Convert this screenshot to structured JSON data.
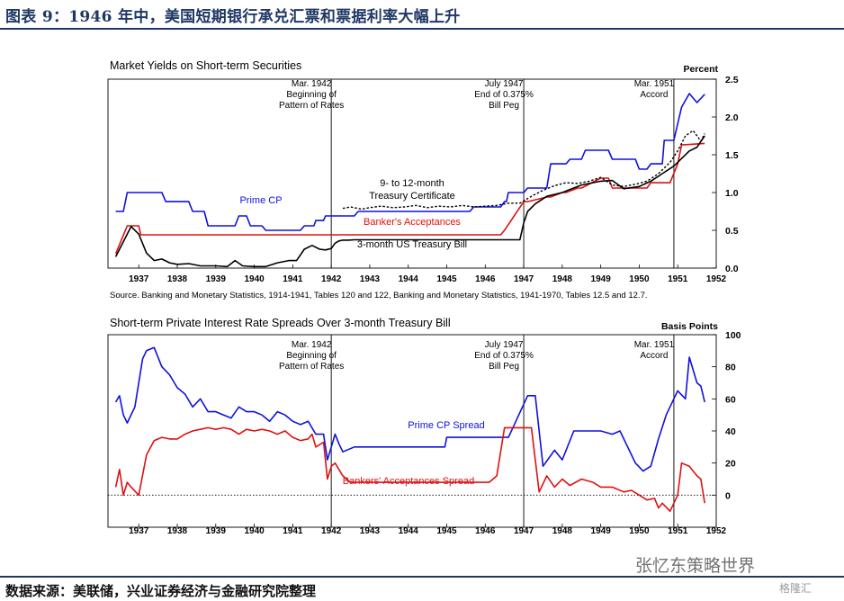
{
  "figure_title": "图表 9：1946 年中，美国短期银行承兑汇票和票据利率大幅上升",
  "source_footer": "数据来源：美联储，兴业证券经济与金融研究院整理",
  "watermark": "张忆东策略世界",
  "watermark_logo": "格隆汇",
  "chart_data": [
    {
      "type": "line",
      "title": "Market Yields on Short-term Securities",
      "ylabel": "Percent",
      "ylim": [
        0.0,
        2.5
      ],
      "yticks": [
        "2.5",
        "2.0",
        "1.5",
        "1.0",
        "0.5",
        "0.0"
      ],
      "ytick_values": [
        2.5,
        2.0,
        1.5,
        1.0,
        0.5,
        0.0
      ],
      "xlim": [
        1936.2,
        1952.0
      ],
      "xtick_labels": [
        "1937",
        "1938",
        "1939",
        "1940",
        "1941",
        "1942",
        "1943",
        "1944",
        "1945",
        "1946",
        "1947",
        "1948",
        "1949",
        "1950",
        "1951",
        "1952"
      ],
      "xtick_values": [
        1937,
        1938,
        1939,
        1940,
        1941,
        1942,
        1943,
        1944,
        1945,
        1946,
        1947,
        1948,
        1949,
        1950,
        1951,
        1952
      ],
      "source_note": "Source.  Banking and Monetary Statistics, 1914-1941, Tables 120 and 122, Banking and Monetary Statistics, 1941-1970, Tables 12.5 and 12.7.",
      "events": [
        {
          "x": 1942.0,
          "lines": [
            "Mar. 1942",
            "Beginning of",
            "Pattern of Rates"
          ]
        },
        {
          "x": 1947.0,
          "lines": [
            "July 1947",
            "End of 0.375%",
            "Bill Peg"
          ]
        },
        {
          "x": 1950.9,
          "lines": [
            "Mar. 1951",
            "Accord"
          ]
        }
      ],
      "series": [
        {
          "name": "Prime CP",
          "label": "Prime CP",
          "color": "#1010e0",
          "dashed": false,
          "x": [
            1936.4,
            1936.6,
            1936.7,
            1937.6,
            1937.7,
            1938.3,
            1938.4,
            1938.7,
            1938.8,
            1939.5,
            1939.6,
            1939.8,
            1939.9,
            1940.2,
            1940.3,
            1941.2,
            1941.3,
            1941.55,
            1941.6,
            1941.8,
            1941.85,
            1942.1,
            1942.2,
            1942.6,
            1942.7,
            1945.6,
            1945.7,
            1946.4,
            1946.5,
            1946.55,
            1946.6,
            1947.0,
            1947.1,
            1947.6,
            1947.7,
            1948.1,
            1948.2,
            1948.5,
            1948.6,
            1949.2,
            1949.3,
            1949.9,
            1950.0,
            1950.2,
            1950.3,
            1950.6,
            1950.65,
            1950.9,
            1951.1,
            1951.3,
            1951.5,
            1951.7
          ],
          "y": [
            0.75,
            0.75,
            1.0,
            1.0,
            0.88,
            0.88,
            0.75,
            0.75,
            0.56,
            0.56,
            0.69,
            0.69,
            0.56,
            0.56,
            0.5,
            0.5,
            0.56,
            0.56,
            0.63,
            0.63,
            0.69,
            0.69,
            0.69,
            0.69,
            0.75,
            0.75,
            0.81,
            0.81,
            0.88,
            0.88,
            1.0,
            1.0,
            1.06,
            1.06,
            1.38,
            1.38,
            1.44,
            1.44,
            1.56,
            1.56,
            1.44,
            1.44,
            1.31,
            1.31,
            1.38,
            1.38,
            1.69,
            1.69,
            2.13,
            2.31,
            2.19,
            2.3
          ]
        },
        {
          "name": "Banker's Acceptances",
          "label": "Banker's Acceptances",
          "color": "#e01010",
          "dashed": false,
          "x": [
            1936.4,
            1936.7,
            1937.0,
            1937.05,
            1942.1,
            1942.2,
            1946.4,
            1946.5,
            1947.0,
            1947.1,
            1947.6,
            1947.7,
            1948.0,
            1948.1,
            1948.4,
            1948.5,
            1949.0,
            1949.2,
            1949.3,
            1950.2,
            1950.3,
            1950.8,
            1951.0,
            1951.1,
            1951.7
          ],
          "y": [
            0.19,
            0.56,
            0.56,
            0.44,
            0.44,
            0.44,
            0.44,
            0.5,
            0.88,
            0.88,
            0.94,
            0.94,
            1.0,
            1.0,
            1.06,
            1.06,
            1.19,
            1.19,
            1.06,
            1.06,
            1.13,
            1.13,
            1.38,
            1.63,
            1.65
          ]
        },
        {
          "name": "9- to 12-month Treasury Certificate",
          "label": "9- to 12-month Treasury Certificate",
          "color": "#000000",
          "dashed": true,
          "x": [
            1942.3,
            1942.5,
            1942.8,
            1943.0,
            1943.3,
            1943.6,
            1943.9,
            1944.2,
            1944.5,
            1944.8,
            1945.1,
            1945.4,
            1945.7,
            1946.0,
            1946.3,
            1946.6,
            1946.9,
            1947.2,
            1947.5,
            1947.8,
            1948.1,
            1948.4,
            1948.7,
            1949.0,
            1949.3,
            1949.6,
            1949.9,
            1950.2,
            1950.5,
            1950.8,
            1951.0,
            1951.2,
            1951.4,
            1951.6,
            1951.7
          ],
          "y": [
            0.79,
            0.81,
            0.78,
            0.8,
            0.82,
            0.8,
            0.81,
            0.83,
            0.8,
            0.82,
            0.81,
            0.83,
            0.81,
            0.82,
            0.83,
            0.86,
            0.86,
            0.95,
            1.03,
            1.09,
            1.13,
            1.12,
            1.15,
            1.2,
            1.1,
            1.08,
            1.11,
            1.15,
            1.25,
            1.4,
            1.55,
            1.75,
            1.82,
            1.68,
            1.78
          ]
        },
        {
          "name": "3-month US Treasury Bill",
          "label": "3-month US Treasury Bill",
          "color": "#000000",
          "dashed": false,
          "x": [
            1936.4,
            1936.6,
            1936.8,
            1937.0,
            1937.2,
            1937.4,
            1937.6,
            1937.8,
            1938.0,
            1938.3,
            1938.6,
            1939.0,
            1939.3,
            1939.5,
            1939.7,
            1940.0,
            1940.3,
            1940.6,
            1940.9,
            1941.1,
            1941.3,
            1941.5,
            1941.7,
            1941.85,
            1942.0,
            1942.1,
            1942.2,
            1942.3,
            1942.45,
            1942.6,
            1946.9,
            1947.0,
            1947.1,
            1947.3,
            1947.6,
            1948.0,
            1948.5,
            1949.0,
            1949.3,
            1949.6,
            1950.0,
            1950.3,
            1950.6,
            1950.9,
            1951.1,
            1951.3,
            1951.5,
            1951.7
          ],
          "y": [
            0.15,
            0.35,
            0.55,
            0.45,
            0.2,
            0.1,
            0.12,
            0.07,
            0.05,
            0.06,
            0.03,
            0.03,
            0.02,
            0.1,
            0.03,
            0.02,
            0.02,
            0.07,
            0.1,
            0.1,
            0.25,
            0.3,
            0.25,
            0.24,
            0.26,
            0.33,
            0.36,
            0.37,
            0.37,
            0.375,
            0.375,
            0.6,
            0.75,
            0.85,
            0.95,
            1.0,
            1.1,
            1.15,
            1.16,
            1.05,
            1.08,
            1.15,
            1.25,
            1.35,
            1.45,
            1.55,
            1.6,
            1.75
          ]
        }
      ]
    },
    {
      "type": "line",
      "title": "Short-term Private Interest Rate Spreads Over 3-month Treasury Bill",
      "ylabel": "Basis Points",
      "ylim": [
        -20,
        100
      ],
      "yticks": [
        "100",
        "80",
        "60",
        "40",
        "20",
        "0"
      ],
      "ytick_values": [
        100,
        80,
        60,
        40,
        20,
        0
      ],
      "xlim": [
        1936.2,
        1952.0
      ],
      "xtick_labels": [
        "1937",
        "1938",
        "1939",
        "1940",
        "1941",
        "1942",
        "1943",
        "1944",
        "1945",
        "1946",
        "1947",
        "1948",
        "1949",
        "1950",
        "1951",
        "1952"
      ],
      "xtick_values": [
        1937,
        1938,
        1939,
        1940,
        1941,
        1942,
        1943,
        1944,
        1945,
        1946,
        1947,
        1948,
        1949,
        1950,
        1951,
        1952
      ],
      "zero_line": "dotted",
      "events": [
        {
          "x": 1942.0,
          "lines": [
            "Mar. 1942",
            "Beginning of",
            "Pattern of Rates"
          ]
        },
        {
          "x": 1947.0,
          "lines": [
            "July 1947",
            "End of 0.375%",
            "Bill Peg"
          ]
        },
        {
          "x": 1950.9,
          "lines": [
            "Mar. 1951",
            "Accord"
          ]
        }
      ],
      "series": [
        {
          "name": "Prime CP Spread",
          "label": "Prime CP Spread",
          "color": "#1010e0",
          "dashed": false,
          "x": [
            1936.4,
            1936.5,
            1936.6,
            1936.7,
            1936.9,
            1937.1,
            1937.2,
            1937.4,
            1937.6,
            1937.8,
            1938.0,
            1938.2,
            1938.4,
            1938.6,
            1938.8,
            1939.0,
            1939.2,
            1939.4,
            1939.6,
            1939.8,
            1940.0,
            1940.2,
            1940.4,
            1940.6,
            1940.8,
            1941.0,
            1941.2,
            1941.4,
            1941.6,
            1941.8,
            1941.9,
            1942.0,
            1942.1,
            1942.2,
            1942.3,
            1942.6,
            1943.0,
            1944.0,
            1944.95,
            1945.0,
            1946.0,
            1946.1,
            1946.6,
            1946.7,
            1947.1,
            1947.2,
            1947.3,
            1947.5,
            1947.8,
            1948.0,
            1948.3,
            1948.6,
            1949.0,
            1949.3,
            1949.5,
            1949.7,
            1949.9,
            1950.1,
            1950.3,
            1950.5,
            1950.7,
            1950.9,
            1951.0,
            1951.2,
            1951.3,
            1951.5,
            1951.6,
            1951.7
          ],
          "y": [
            58,
            62,
            50,
            45,
            55,
            85,
            90,
            92,
            80,
            75,
            67,
            63,
            55,
            60,
            52,
            52,
            50,
            48,
            55,
            52,
            52,
            50,
            46,
            52,
            50,
            46,
            44,
            46,
            38,
            38,
            22,
            30,
            38,
            32,
            27,
            30,
            30,
            30,
            30,
            36,
            36,
            36,
            36,
            41,
            62,
            62,
            62,
            18,
            28,
            22,
            40,
            40,
            40,
            38,
            40,
            30,
            20,
            15,
            18,
            35,
            50,
            60,
            65,
            60,
            86,
            70,
            68,
            58
          ]
        },
        {
          "name": "Bankers' Acceptances Spread",
          "label": "Bankers' Acceptances Spread",
          "color": "#e01010",
          "dashed": false,
          "x": [
            1936.4,
            1936.5,
            1936.6,
            1936.7,
            1936.8,
            1937.0,
            1937.2,
            1937.4,
            1937.6,
            1937.8,
            1938.0,
            1938.2,
            1938.4,
            1938.6,
            1938.8,
            1939.0,
            1939.2,
            1939.4,
            1939.6,
            1939.8,
            1940.0,
            1940.2,
            1940.4,
            1940.6,
            1940.8,
            1941.0,
            1941.2,
            1941.4,
            1941.5,
            1941.6,
            1941.8,
            1941.9,
            1942.0,
            1942.1,
            1942.3,
            1942.5,
            1945.0,
            1946.0,
            1946.1,
            1946.3,
            1946.5,
            1947.1,
            1947.2,
            1947.4,
            1947.6,
            1947.8,
            1948.0,
            1948.2,
            1948.5,
            1948.8,
            1949.0,
            1949.3,
            1949.6,
            1949.8,
            1950.0,
            1950.2,
            1950.4,
            1950.5,
            1950.6,
            1950.8,
            1951.0,
            1951.1,
            1951.3,
            1951.5,
            1951.6,
            1951.7
          ],
          "y": [
            5,
            16,
            0,
            8,
            5,
            0,
            25,
            34,
            36,
            35,
            35,
            38,
            40,
            41,
            42,
            41,
            42,
            41,
            38,
            41,
            40,
            41,
            40,
            38,
            40,
            36,
            34,
            35,
            38,
            30,
            33,
            10,
            18,
            20,
            12,
            8,
            8,
            8,
            8,
            12,
            42,
            42,
            42,
            2,
            12,
            5,
            10,
            6,
            10,
            8,
            5,
            5,
            2,
            3,
            0,
            -3,
            -2,
            -8,
            -5,
            -10,
            0,
            20,
            18,
            12,
            10,
            -5
          ]
        }
      ]
    }
  ]
}
